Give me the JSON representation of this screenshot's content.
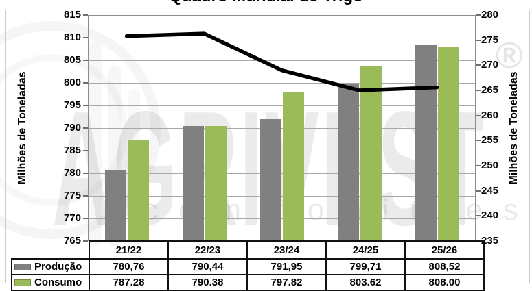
{
  "title": "Quadro Mundial de Trigo",
  "watermark": {
    "brand": "AGRIVEST",
    "registered_mark": "®",
    "tagline": "commodities"
  },
  "chart_data": {
    "type": "bar",
    "subtype": "grouped-bars-with-line-overlay-and-data-table",
    "categories": [
      "21/22",
      "22/23",
      "23/24",
      "24/25",
      "25/26"
    ],
    "series": [
      {
        "name": "Produção",
        "type": "bar",
        "axis": "left",
        "color": "#808080",
        "values": [
          780.76,
          790.44,
          791.95,
          799.71,
          808.52
        ],
        "value_labels": [
          "780,76",
          "790,44",
          "791,95",
          "799,71",
          "808,52"
        ]
      },
      {
        "name": "Consumo",
        "type": "bar",
        "axis": "left",
        "color": "#9BBB59",
        "values": [
          787.28,
          790.38,
          797.82,
          803.62,
          808.0
        ],
        "value_labels": [
          "787.28",
          "790.38",
          "797.82",
          "803.62",
          "808.00"
        ]
      },
      {
        "name": "",
        "type": "line",
        "axis": "right",
        "color": "#000000",
        "values": [
          275.8,
          276.3,
          269.0,
          265.0,
          265.6
        ]
      }
    ],
    "left_axis": {
      "title": "Milhões de Toneladas",
      "min": 765,
      "max": 815,
      "step": 5
    },
    "right_axis": {
      "title": "Milhões de Toneladas",
      "min": 235,
      "max": 280,
      "step": 5
    },
    "grid": true,
    "legend_position": "data-table-left-column",
    "data_table_shown": true
  }
}
